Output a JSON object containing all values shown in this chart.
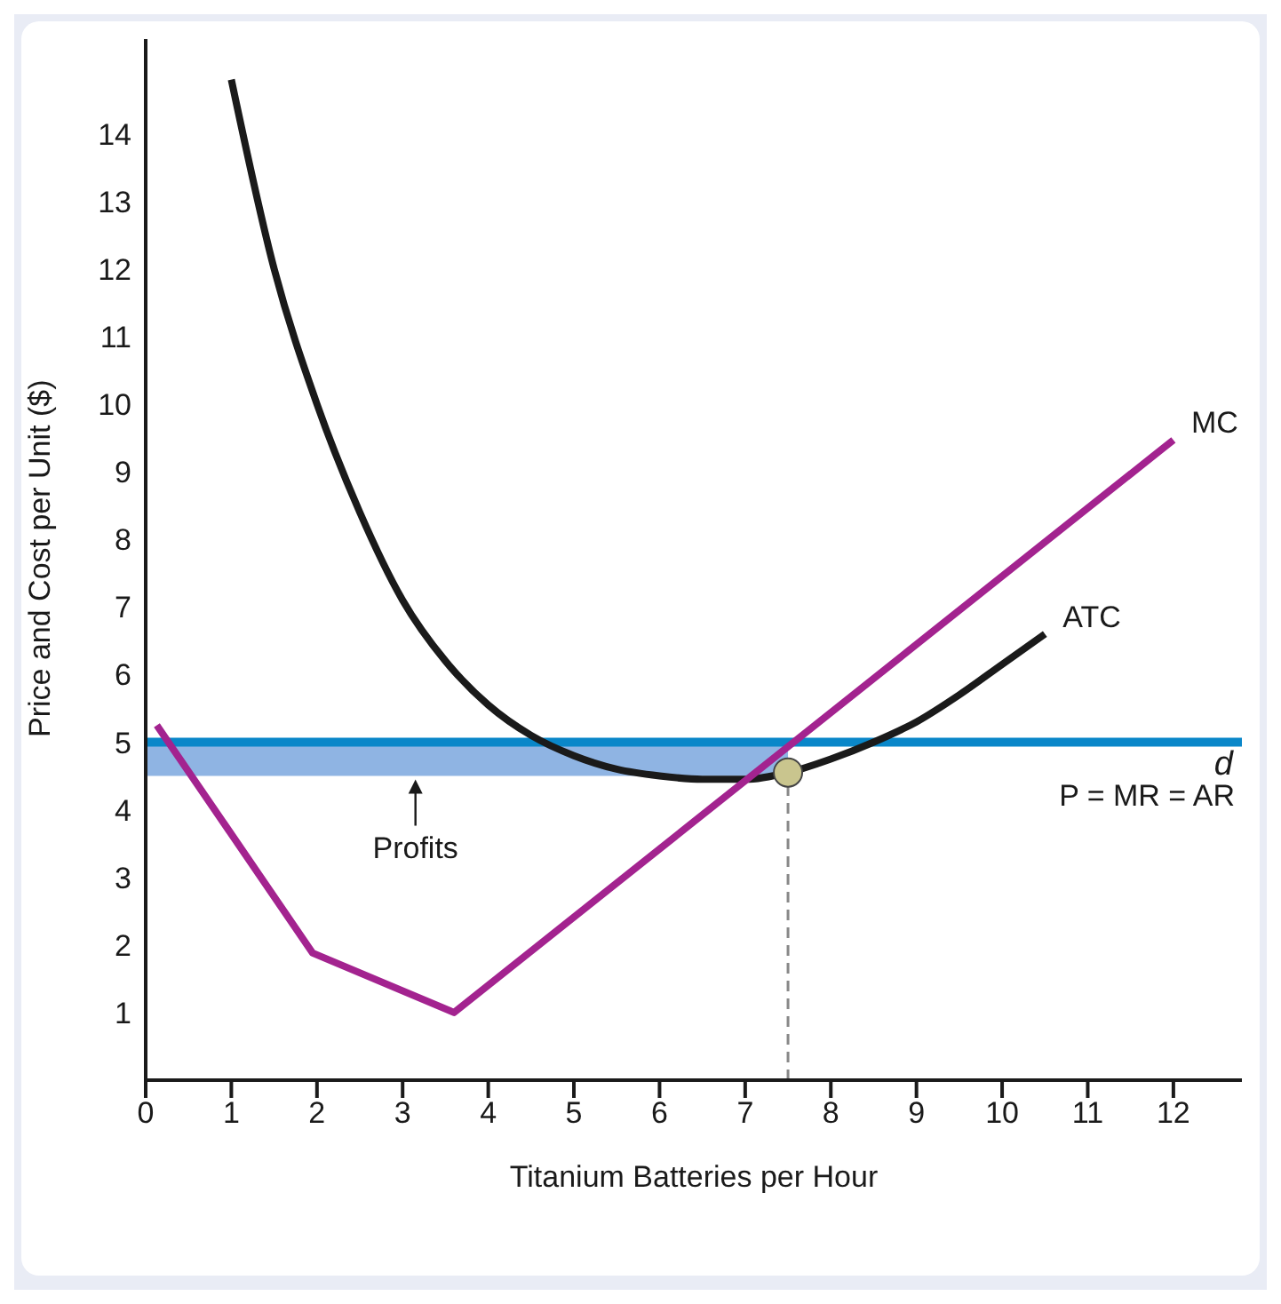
{
  "chart_data": {
    "type": "line",
    "xlabel": "Titanium Batteries per Hour",
    "ylabel": "Price and Cost per Unit ($)",
    "xlim": [
      0,
      12.8
    ],
    "ylim": [
      0,
      15.4
    ],
    "xticks": [
      0,
      1,
      2,
      3,
      4,
      5,
      6,
      7,
      8,
      9,
      10,
      11,
      12
    ],
    "yticks": [
      1,
      2,
      3,
      4,
      5,
      6,
      7,
      8,
      9,
      10,
      11,
      12,
      13,
      14
    ],
    "series": [
      {
        "name": "ATC",
        "color": "#1a1a1a",
        "x": [
          1,
          1.5,
          2,
          2.5,
          3,
          3.5,
          4,
          4.5,
          5,
          5.5,
          6,
          6.5,
          7,
          7.5,
          8,
          8.5,
          9,
          9.5,
          10,
          10.5
        ],
        "values": [
          14.8,
          12.0,
          10.0,
          8.4,
          7.1,
          6.2,
          5.55,
          5.1,
          4.8,
          4.6,
          4.5,
          4.45,
          4.45,
          4.55,
          4.75,
          5.0,
          5.3,
          5.7,
          6.15,
          6.6
        ]
      },
      {
        "name": "MC",
        "color": "#a3238f",
        "x": [
          0.13,
          1.95,
          3.6,
          12.0
        ],
        "values": [
          5.25,
          1.88,
          1.0,
          9.47
        ]
      },
      {
        "type": "scatter",
        "color": "#c9c58e",
        "x": [
          7.5
        ],
        "values": [
          4.55
        ]
      }
    ],
    "ref_lines": [
      {
        "axis": "y",
        "value": 5,
        "label": "d",
        "color": "#0a87c9"
      },
      {
        "axis": "x",
        "value": 7.5,
        "color": "#888888",
        "line_style": "dashed"
      }
    ],
    "bands": [
      {
        "axis": "y",
        "from": 4.5,
        "to": 5,
        "color": "#8fb4e3"
      }
    ],
    "annotations": [
      "P = MR = AR",
      "Profits"
    ]
  }
}
